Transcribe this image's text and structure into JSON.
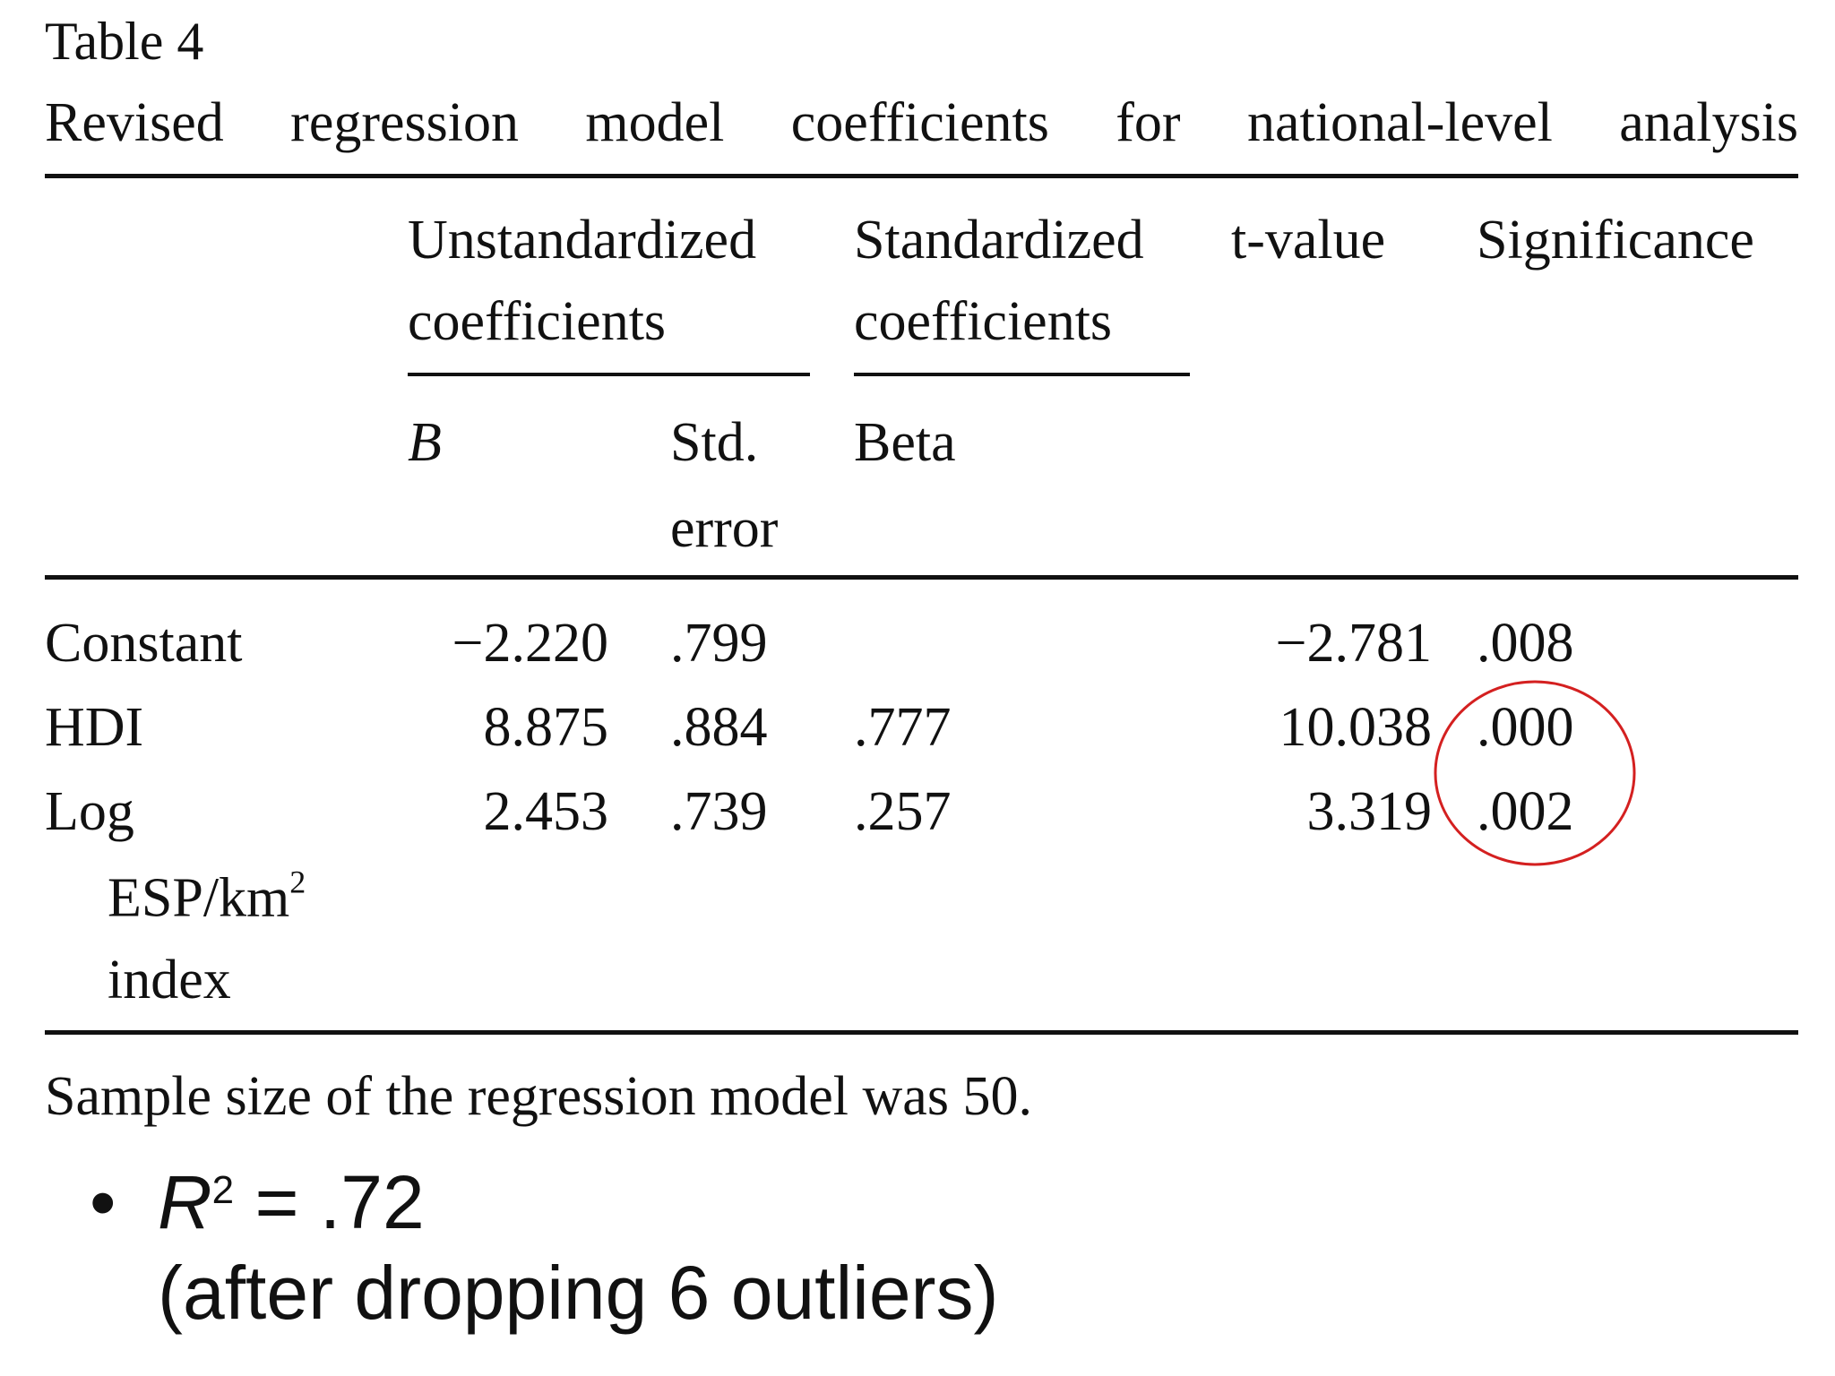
{
  "table": {
    "label": "Table 4",
    "title": "Revised regression model coefficients for national-level analysis",
    "header": {
      "unstandardized": [
        "Unstandardized",
        "coefficients"
      ],
      "standardized": [
        "Standardized",
        "coefficients"
      ],
      "t_value": "t-value",
      "significance": "Significance",
      "b": "B",
      "std_error": [
        "Std.",
        "error"
      ],
      "beta": "Beta"
    },
    "rows": [
      {
        "label": [
          "Constant"
        ],
        "b": "−2.220",
        "std_error": ".799",
        "t_value": "−2.781",
        "significance": ".008"
      },
      {
        "label": [
          "HDI"
        ],
        "b": "8.875",
        "std_error": ".884",
        "beta": ".777",
        "t_value": "10.038",
        "significance": ".000"
      },
      {
        "label": [
          "Log",
          "ESP/km",
          "2",
          "index"
        ],
        "b": "2.453",
        "std_error": ".739",
        "beta": ".257",
        "t_value": "3.319",
        "significance": ".002"
      }
    ],
    "note": "Sample size of the regression model was 50."
  },
  "bullet": {
    "symbol": "R",
    "exponent": "2",
    "value": "= .72",
    "detail": "(after dropping 6 outliers)"
  }
}
